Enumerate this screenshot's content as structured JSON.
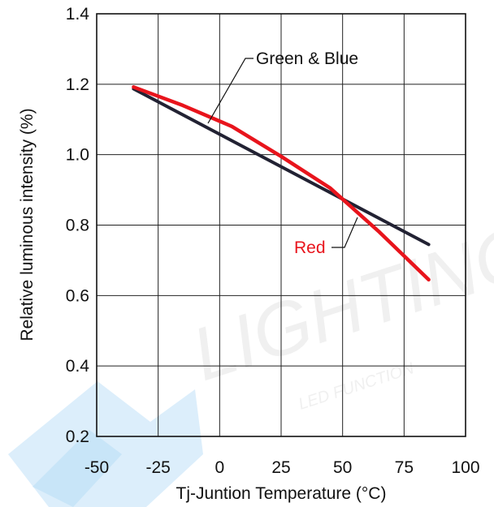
{
  "chart_data": {
    "type": "line",
    "title": "",
    "xlabel": "Tj-Juntion Temperature (°C)",
    "ylabel": "Relative luminous intensity (%)",
    "xlim": [
      -50,
      100
    ],
    "ylim": [
      0.2,
      1.4
    ],
    "x_ticks": [
      "-50",
      "-25",
      "0",
      "25",
      "50",
      "75",
      "100"
    ],
    "y_ticks": [
      "0.2",
      "0.4",
      "0.6",
      "0.8",
      "1.0",
      "1.2",
      "1.4"
    ],
    "grid": true,
    "series": [
      {
        "name": "Green & Blue",
        "color": "#222233",
        "x": [
          -35,
          85
        ],
        "y": [
          1.187,
          0.745
        ]
      },
      {
        "name": "Red",
        "color": "#e8141c",
        "x": [
          -35,
          -15,
          5,
          25,
          45,
          65,
          85
        ],
        "y": [
          1.192,
          1.14,
          1.08,
          0.995,
          0.905,
          0.78,
          0.645
        ]
      }
    ],
    "annotations": [
      {
        "text": "Green & Blue",
        "color": "#111111"
      },
      {
        "text": "Red",
        "color": "#e8141c"
      }
    ]
  },
  "watermark": {
    "text": "LIGHTING",
    "subtext": "LED FUNCTION"
  }
}
